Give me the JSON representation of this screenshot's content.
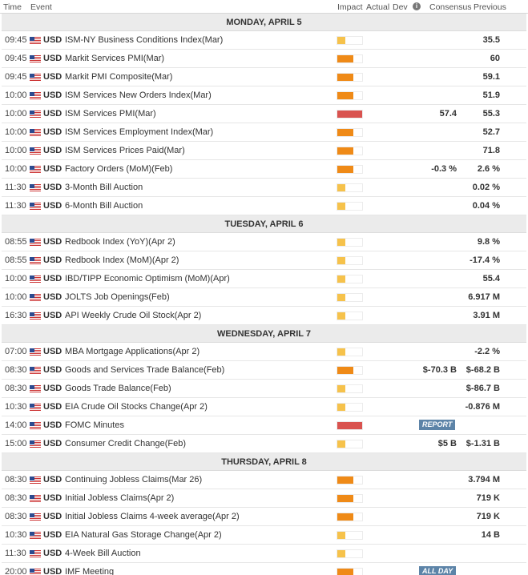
{
  "header": {
    "time": "Time",
    "event": "Event",
    "impact": "Impact",
    "actual": "Actual",
    "dev": "Dev",
    "info": "i",
    "consensus": "Consensus",
    "previous": "Previous"
  },
  "colors": {
    "low": "#f6c24b",
    "medium": "#ef8a17",
    "high": "#d9534f",
    "badge": "#5d84a8"
  },
  "days": [
    {
      "label": "MONDAY, APRIL 5",
      "events": [
        {
          "time": "09:45",
          "currency": "USD",
          "name": "ISM-NY Business Conditions Index(Mar)",
          "impact": "low",
          "consensus": "",
          "previous": "35.5"
        },
        {
          "time": "09:45",
          "currency": "USD",
          "name": "Markit Services PMI(Mar)",
          "impact": "medium",
          "consensus": "",
          "previous": "60"
        },
        {
          "time": "09:45",
          "currency": "USD",
          "name": "Markit PMI Composite(Mar)",
          "impact": "medium",
          "consensus": "",
          "previous": "59.1"
        },
        {
          "time": "10:00",
          "currency": "USD",
          "name": "ISM Services New Orders Index(Mar)",
          "impact": "medium",
          "consensus": "",
          "previous": "51.9"
        },
        {
          "time": "10:00",
          "currency": "USD",
          "name": "ISM Services PMI(Mar)",
          "impact": "high",
          "consensus": "57.4",
          "previous": "55.3"
        },
        {
          "time": "10:00",
          "currency": "USD",
          "name": "ISM Services Employment Index(Mar)",
          "impact": "medium",
          "consensus": "",
          "previous": "52.7"
        },
        {
          "time": "10:00",
          "currency": "USD",
          "name": "ISM Services Prices Paid(Mar)",
          "impact": "medium",
          "consensus": "",
          "previous": "71.8"
        },
        {
          "time": "10:00",
          "currency": "USD",
          "name": "Factory Orders (MoM)(Feb)",
          "impact": "medium",
          "consensus": "-0.3 %",
          "previous": "2.6 %"
        },
        {
          "time": "11:30",
          "currency": "USD",
          "name": "3-Month Bill Auction",
          "impact": "low",
          "consensus": "",
          "previous": "0.02 %"
        },
        {
          "time": "11:30",
          "currency": "USD",
          "name": "6-Month Bill Auction",
          "impact": "low",
          "consensus": "",
          "previous": "0.04 %"
        }
      ]
    },
    {
      "label": "TUESDAY, APRIL 6",
      "events": [
        {
          "time": "08:55",
          "currency": "USD",
          "name": "Redbook Index (YoY)(Apr 2)",
          "impact": "low",
          "consensus": "",
          "previous": "9.8 %"
        },
        {
          "time": "08:55",
          "currency": "USD",
          "name": "Redbook Index (MoM)(Apr 2)",
          "impact": "low",
          "consensus": "",
          "previous": "-17.4 %"
        },
        {
          "time": "10:00",
          "currency": "USD",
          "name": "IBD/TIPP Economic Optimism (MoM)(Apr)",
          "impact": "low",
          "consensus": "",
          "previous": "55.4"
        },
        {
          "time": "10:00",
          "currency": "USD",
          "name": "JOLTS Job Openings(Feb)",
          "impact": "low",
          "consensus": "",
          "previous": "6.917 M"
        },
        {
          "time": "16:30",
          "currency": "USD",
          "name": "API Weekly Crude Oil Stock(Apr 2)",
          "impact": "low",
          "consensus": "",
          "previous": "3.91 M"
        }
      ]
    },
    {
      "label": "WEDNESDAY, APRIL 7",
      "events": [
        {
          "time": "07:00",
          "currency": "USD",
          "name": "MBA Mortgage Applications(Apr 2)",
          "impact": "low",
          "consensus": "",
          "previous": "-2.2 %"
        },
        {
          "time": "08:30",
          "currency": "USD",
          "name": "Goods and Services Trade Balance(Feb)",
          "impact": "medium",
          "consensus": "$-70.3 B",
          "previous": "$-68.2 B"
        },
        {
          "time": "08:30",
          "currency": "USD",
          "name": "Goods Trade Balance(Feb)",
          "impact": "low",
          "consensus": "",
          "previous": "$-86.7 B"
        },
        {
          "time": "10:30",
          "currency": "USD",
          "name": "EIA Crude Oil Stocks Change(Apr 2)",
          "impact": "low",
          "consensus": "",
          "previous": "-0.876 M"
        },
        {
          "time": "14:00",
          "currency": "USD",
          "name": "FOMC Minutes",
          "impact": "high",
          "consensus": "",
          "previous": "",
          "badge": "REPORT"
        },
        {
          "time": "15:00",
          "currency": "USD",
          "name": "Consumer Credit Change(Feb)",
          "impact": "low",
          "consensus": "$5 B",
          "previous": "$-1.31 B"
        }
      ]
    },
    {
      "label": "THURSDAY, APRIL 8",
      "events": [
        {
          "time": "08:30",
          "currency": "USD",
          "name": "Continuing Jobless Claims(Mar 26)",
          "impact": "medium",
          "consensus": "",
          "previous": "3.794 M"
        },
        {
          "time": "08:30",
          "currency": "USD",
          "name": "Initial Jobless Claims(Apr 2)",
          "impact": "medium",
          "consensus": "",
          "previous": "719 K"
        },
        {
          "time": "08:30",
          "currency": "USD",
          "name": "Initial Jobless Claims 4-week average(Apr 2)",
          "impact": "medium",
          "consensus": "",
          "previous": "719 K"
        },
        {
          "time": "10:30",
          "currency": "USD",
          "name": "EIA Natural Gas Storage Change(Apr 2)",
          "impact": "low",
          "consensus": "",
          "previous": "14 B"
        },
        {
          "time": "11:30",
          "currency": "USD",
          "name": "4-Week Bill Auction",
          "impact": "low",
          "consensus": "",
          "previous": ""
        },
        {
          "time": "20:00",
          "currency": "USD",
          "name": "IMF Meeting",
          "impact": "medium",
          "consensus": "",
          "previous": "",
          "badge": "ALL DAY"
        }
      ]
    }
  ]
}
